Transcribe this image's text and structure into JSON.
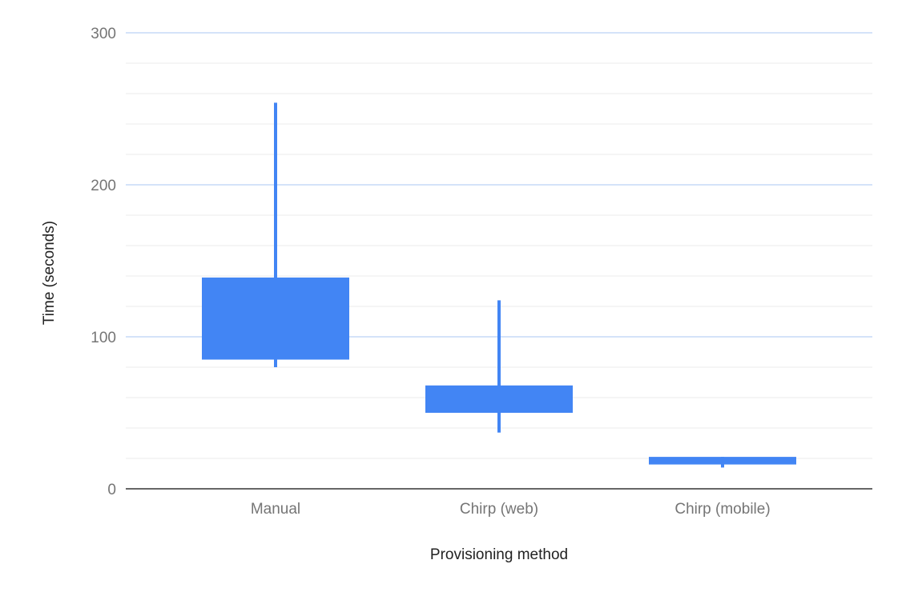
{
  "chart_data": {
    "type": "candlestick",
    "title": "",
    "xlabel": "Provisioning method",
    "ylabel": "Time (seconds)",
    "ylim": [
      0,
      300
    ],
    "y_major_ticks": [
      0,
      100,
      200,
      300
    ],
    "y_minor_step": 20,
    "grid": true,
    "legend": "none",
    "colors": {
      "box": "#4285F4",
      "major_grid": "#C6DAF7",
      "minor_grid": "#EBEBEB",
      "baseline": "#333333"
    },
    "categories": [
      "Manual",
      "Chirp (web)",
      "Chirp (mobile)"
    ],
    "series": [
      {
        "values": [
          {
            "low": 80,
            "open": 85,
            "close": 139,
            "high": 254
          },
          {
            "low": 37,
            "open": 50,
            "close": 68,
            "high": 124
          },
          {
            "low": 14,
            "open": 16,
            "close": 21,
            "high": 21
          }
        ]
      }
    ]
  }
}
